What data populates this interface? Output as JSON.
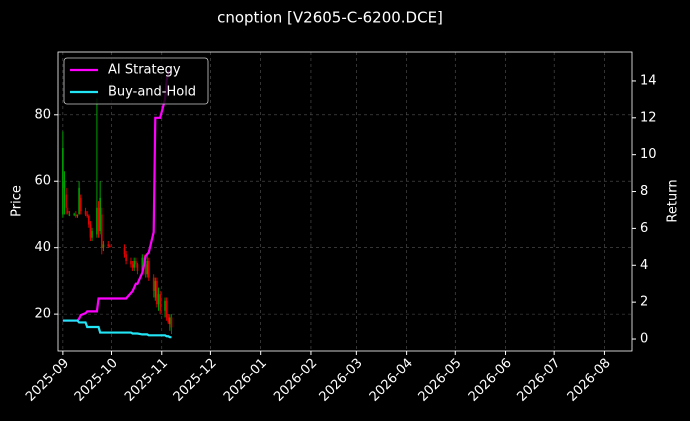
{
  "chart_data": {
    "type": "candlestick",
    "title": "cnoption [V2605-C-6200.DCE]",
    "ylabel": "Price",
    "y2label": "Return",
    "x": [
      "2025-09-01",
      "2025-09-02",
      "2025-09-03",
      "2025-09-04",
      "2025-09-05",
      "2025-09-08",
      "2025-09-09",
      "2025-09-10",
      "2025-09-11",
      "2025-09-12",
      "2025-09-15",
      "2025-09-16",
      "2025-09-17",
      "2025-09-18",
      "2025-09-19",
      "2025-09-22",
      "2025-09-23",
      "2025-09-24",
      "2025-09-25",
      "2025-09-26",
      "2025-09-29",
      "2025-09-30",
      "2025-10-09",
      "2025-10-10",
      "2025-10-13",
      "2025-10-14",
      "2025-10-15",
      "2025-10-16",
      "2025-10-17",
      "2025-10-20",
      "2025-10-21",
      "2025-10-22",
      "2025-10-23",
      "2025-10-24",
      "2025-10-27",
      "2025-10-28",
      "2025-10-29",
      "2025-10-30",
      "2025-10-31",
      "2025-11-03",
      "2025-11-04",
      "2025-11-05",
      "2025-11-06",
      "2025-11-07"
    ],
    "open": [
      50,
      58,
      56,
      51,
      50,
      50,
      50,
      49.5,
      50,
      55,
      51,
      50,
      49.5,
      47,
      43,
      44,
      52,
      45,
      50,
      40,
      41,
      40.5,
      40,
      38,
      36,
      35,
      34,
      36,
      35,
      33,
      37,
      35,
      32,
      36,
      31,
      25,
      30,
      23,
      26,
      21,
      24,
      19,
      17,
      19
    ],
    "high": [
      75,
      63,
      58,
      52,
      51,
      50.5,
      51,
      50,
      60,
      56,
      52,
      51,
      50,
      48,
      46,
      85,
      54,
      60,
      52,
      42,
      42,
      41,
      41,
      39,
      37,
      36,
      37,
      37,
      35.5,
      38,
      38,
      36,
      38,
      37,
      32,
      31,
      31,
      28,
      27,
      25,
      25,
      20,
      20,
      20
    ],
    "low": [
      49,
      50,
      50,
      50,
      49.5,
      49.5,
      49,
      49,
      50,
      50,
      49.5,
      49,
      46,
      42,
      42,
      43,
      43,
      44,
      38,
      39,
      40,
      40,
      37,
      35,
      34,
      33,
      33,
      34,
      32,
      32,
      34,
      31,
      31,
      30,
      25,
      24,
      22,
      21,
      20,
      19,
      18,
      17,
      15,
      14
    ],
    "close": [
      70,
      60,
      52,
      50.5,
      50,
      50.2,
      49.5,
      49.8,
      58,
      51,
      50,
      49.5,
      47,
      43,
      45,
      52,
      45,
      55,
      40,
      41,
      40.5,
      40.2,
      38,
      36,
      35,
      34,
      36,
      35,
      33,
      37,
      35,
      32,
      36,
      31,
      27,
      30,
      23,
      26,
      21,
      24,
      19,
      17.5,
      19,
      16
    ],
    "up_color": "#00a000",
    "down_color": "#e00000",
    "series": [
      {
        "name": "AI Strategy",
        "color": "#ff00ff",
        "axis": "y2",
        "values": [
          1,
          1,
          1,
          1,
          1,
          1,
          1,
          1,
          1.1,
          1.3,
          1.4,
          1.5,
          1.5,
          1.5,
          1.5,
          1.5,
          2.2,
          2.2,
          2.2,
          2.2,
          2.2,
          2.2,
          2.2,
          2.2,
          2.5,
          2.6,
          2.8,
          3.0,
          3.0,
          3.6,
          4.0,
          4.5,
          4.6,
          4.7,
          5.8,
          12.0,
          12.0,
          12.0,
          12.0,
          13.0,
          14.0,
          14.5,
          14.5,
          14.5
        ]
      },
      {
        "name": "Buy-and-Hold",
        "color": "#22e5f5",
        "axis": "y2",
        "values": [
          1,
          1,
          1,
          1,
          1,
          1,
          1,
          1,
          0.9,
          0.9,
          0.9,
          0.65,
          0.65,
          0.65,
          0.65,
          0.65,
          0.65,
          0.35,
          0.35,
          0.35,
          0.35,
          0.35,
          0.35,
          0.35,
          0.35,
          0.3,
          0.3,
          0.3,
          0.3,
          0.25,
          0.25,
          0.25,
          0.25,
          0.2,
          0.2,
          0.2,
          0.2,
          0.2,
          0.2,
          0.2,
          0.15,
          0.15,
          0.1,
          0.1
        ]
      }
    ],
    "xlim": [
      "2025-08-29",
      "2026-08-18"
    ],
    "xticks": [
      "2025-09",
      "2025-10",
      "2025-11",
      "2025-12",
      "2026-01",
      "2026-02",
      "2026-03",
      "2026-04",
      "2026-05",
      "2026-06",
      "2026-07",
      "2026-08"
    ],
    "ylim": [
      8.9,
      98.9
    ],
    "yticks": [
      20,
      40,
      60,
      80
    ],
    "y2lim": [
      -0.65,
      15.57
    ],
    "y2ticks": [
      0,
      2,
      4,
      6,
      8,
      10,
      12,
      14
    ],
    "grid": true,
    "legend": "upper left"
  }
}
